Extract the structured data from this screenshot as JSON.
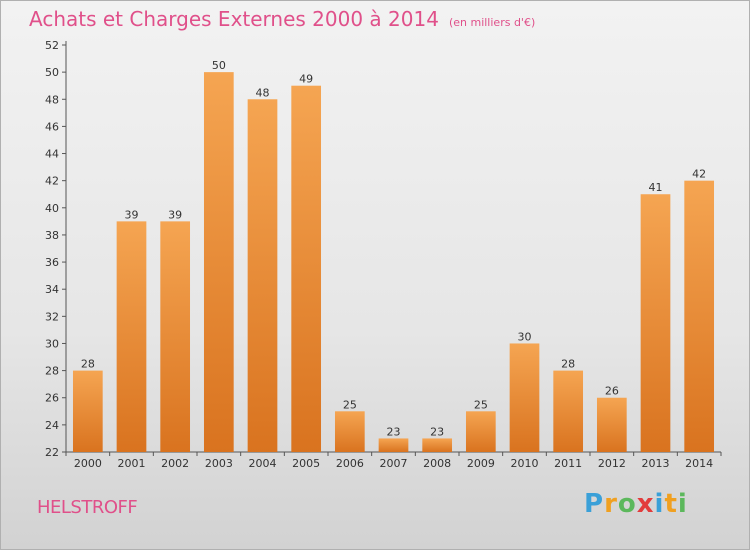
{
  "title": "Achats et Charges Externes 2000 à 2014",
  "subtitle": "(en milliers d'€)",
  "town": "HELSTROFF",
  "logo": {
    "letters": [
      "P",
      "r",
      "o",
      "x",
      "i",
      "t",
      "i"
    ],
    "colors": [
      "#3aa0d8",
      "#f0a020",
      "#5cb85c",
      "#e23c3c",
      "#3aa0d8",
      "#f0a020",
      "#5cb85c"
    ]
  },
  "colors": {
    "bar_light": "#f5a552",
    "bar_dark": "#d9731f",
    "title": "#e0508a"
  },
  "chart_data": {
    "type": "bar",
    "title": "Achats et Charges Externes 2000 à 2014",
    "subtitle": "(en milliers d'€)",
    "xlabel": "",
    "ylabel": "",
    "categories": [
      "2000",
      "2001",
      "2002",
      "2003",
      "2004",
      "2005",
      "2006",
      "2007",
      "2008",
      "2009",
      "2010",
      "2011",
      "2012",
      "2013",
      "2014"
    ],
    "values": [
      28,
      39,
      39,
      50,
      48,
      49,
      25,
      23,
      23,
      25,
      30,
      28,
      26,
      41,
      42
    ],
    "ylim": [
      22,
      52
    ],
    "yticks": [
      22,
      24,
      26,
      28,
      30,
      32,
      34,
      36,
      38,
      40,
      42,
      44,
      46,
      48,
      50,
      52
    ],
    "grid": false,
    "legend": "none"
  }
}
